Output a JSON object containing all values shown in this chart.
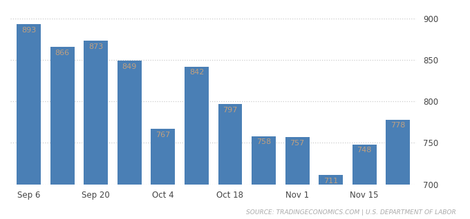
{
  "x_tick_positions": [
    0,
    2,
    4,
    6,
    8,
    10
  ],
  "x_tick_labels": [
    "Sep 6",
    "Sep 20",
    "Oct 4",
    "Oct 18",
    "Nov 1",
    "Nov 15"
  ],
  "values": [
    893,
    866,
    873,
    849,
    767,
    842,
    797,
    758,
    757,
    711,
    748,
    778
  ],
  "bar_color": "#4a7fb5",
  "ylim_bottom": 700,
  "ylim_top": 910,
  "yticks": [
    700,
    750,
    800,
    850,
    900
  ],
  "bar_label_color": "#c0a080",
  "source_text": "SOURCE: TRADINGECONOMICS.COM | U.S. DEPARTMENT OF LABOR",
  "source_fontsize": 6.5,
  "background_color": "#ffffff",
  "grid_color": "#cccccc",
  "label_fontsize": 8,
  "tick_fontsize": 8.5,
  "bar_width": 0.72
}
